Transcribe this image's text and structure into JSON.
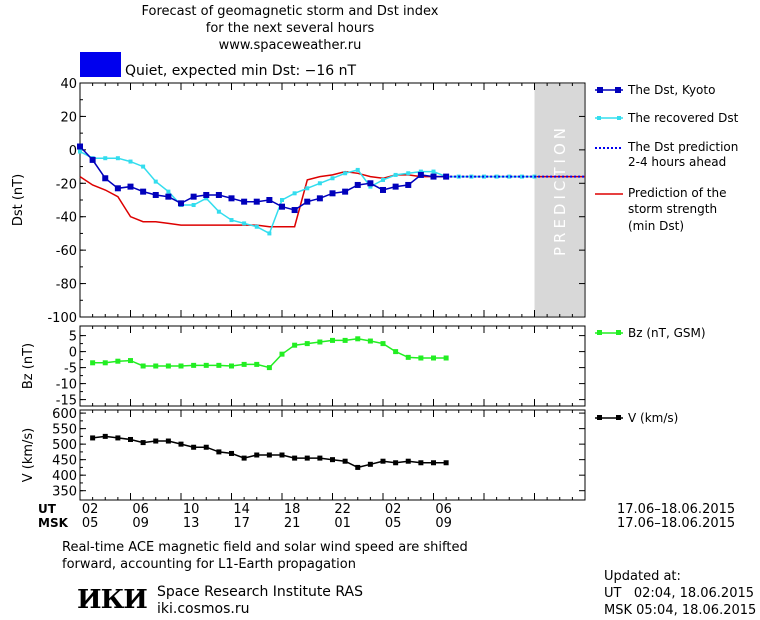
{
  "header": {
    "title_line1": "Forecast of geomagnetic storm and Dst index",
    "title_line2": "for the next several hours",
    "title_line3": "www.spaceweather.ru",
    "status_text": "Quiet, expected min Dst: −16 nT"
  },
  "colors": {
    "status_box": "#0000ee",
    "dst_kyoto": "#0000bb",
    "dst_recovered": "#33ddee",
    "dst_prediction": "#0000ee",
    "storm_strength": "#dd0000",
    "bz": "#22ee22",
    "v": "#000000",
    "prediction_zone": "#d8d8d8"
  },
  "legend": {
    "dst_kyoto": "The Dst, Kyoto",
    "dst_recovered": "The recovered Dst",
    "dst_prediction_line1": "The Dst prediction",
    "dst_prediction_line2": "2-4 hours ahead",
    "storm_line1": "Prediction of the",
    "storm_line2": "storm strength",
    "storm_line3": "(min Dst)",
    "bz": "Bz (nT, GSM)",
    "v": "V (km/s)"
  },
  "prediction_label": "PREDICTION",
  "time_axis": {
    "ut_label": "UT",
    "msk_label": "MSK",
    "ut_ticks": [
      "02",
      "06",
      "10",
      "14",
      "18",
      "22",
      "02",
      "06"
    ],
    "msk_ticks": [
      "05",
      "09",
      "13",
      "17",
      "21",
      "01",
      "05",
      "09"
    ],
    "ut_range": "17.06–18.06.2015",
    "msk_range": "17.06–18.06.2015"
  },
  "footer": {
    "note_line1": "Real-time ACE magnetic field and solar wind speed are shifted",
    "note_line2": "forward, accounting for L1-Earth propagation",
    "logo_text": "ИКИ",
    "institute": "Space Research Institute RAS",
    "website": "iki.cosmos.ru",
    "updated_label": "Updated at:",
    "updated_ut": "UT   02:04, 18.06.2015",
    "updated_msk": "MSK 05:04, 18.06.2015"
  },
  "chart_data": [
    {
      "type": "line",
      "panel": "dst",
      "ylabel": "Dst (nT)",
      "ylim": [
        -100,
        40
      ],
      "yticks": [
        40,
        20,
        0,
        -20,
        -40,
        -60,
        -80,
        -100
      ],
      "xlim": [
        0,
        40
      ],
      "prediction_zone": [
        36,
        40
      ],
      "series": [
        {
          "name": "The Dst, Kyoto",
          "x": [
            0,
            1,
            2,
            3,
            4,
            5,
            6,
            7,
            8,
            9,
            10,
            11,
            12,
            13,
            14,
            15,
            16,
            17,
            18,
            19,
            20,
            21,
            22,
            23,
            24,
            25,
            26,
            27,
            28,
            29
          ],
          "y": [
            2,
            -6,
            -17,
            -23,
            -22,
            -25,
            -27,
            -28,
            -32,
            -28,
            -27,
            -27,
            -29,
            -31,
            -31,
            -30,
            -34,
            -36,
            -31,
            -29,
            -26,
            -25,
            -21,
            -20,
            -24,
            -22,
            -21,
            -15,
            -16,
            -16
          ]
        },
        {
          "name": "The recovered Dst",
          "x": [
            0,
            1,
            2,
            3,
            4,
            5,
            6,
            7,
            8,
            9,
            10,
            11,
            12,
            13,
            14,
            15,
            16,
            17,
            18,
            19,
            20,
            21,
            22,
            23,
            24,
            25,
            26,
            27,
            28,
            29,
            30,
            31,
            32,
            33,
            34,
            35,
            36
          ],
          "y": [
            -1,
            -5,
            -5,
            -5,
            -7,
            -10,
            -19,
            -25,
            -33,
            -33,
            -29,
            -37,
            -42,
            -44,
            -46,
            -50,
            -30,
            -26,
            -23,
            -20,
            -17,
            -14,
            -12,
            -22,
            -18,
            -15,
            -14,
            -13,
            -13,
            -16,
            -16,
            -16,
            -16,
            -16,
            -16,
            -16,
            -16
          ]
        },
        {
          "name": "The Dst prediction 2-4 hours ahead",
          "x": [
            29,
            30,
            31,
            32,
            33,
            34,
            35,
            36,
            37,
            38,
            39,
            40
          ],
          "y": [
            -16,
            -16,
            -16,
            -16,
            -16,
            -16,
            -16,
            -16,
            -16,
            -16,
            -16,
            -16
          ]
        },
        {
          "name": "Prediction of the storm strength (min Dst)",
          "x": [
            0,
            1,
            2,
            3,
            4,
            5,
            6,
            7,
            8,
            9,
            10,
            11,
            12,
            13,
            14,
            15,
            16,
            17,
            18,
            19,
            20,
            21,
            22,
            23,
            24,
            25,
            26,
            27,
            28,
            29,
            30,
            31,
            32,
            33,
            34,
            35,
            36,
            37,
            38,
            39,
            40
          ],
          "y": [
            -16,
            -21,
            -24,
            -28,
            -40,
            -43,
            -43,
            -44,
            -45,
            -45,
            -45,
            -45,
            -45,
            -45,
            -45,
            -46,
            -46,
            -46,
            -18,
            -16,
            -15,
            -13,
            -14,
            -16,
            -17,
            -15,
            -15,
            -16,
            -16,
            -16,
            -16,
            -16,
            -16,
            -16,
            -16,
            -16,
            -16,
            -16,
            -16,
            -16,
            -16
          ]
        }
      ]
    },
    {
      "type": "line",
      "panel": "bz",
      "ylabel": "Bz (nT)",
      "ylim": [
        -17,
        8
      ],
      "yticks": [
        5,
        0,
        -5,
        -10,
        -15
      ],
      "xlim": [
        0,
        40
      ],
      "series": [
        {
          "name": "Bz (nT, GSM)",
          "x": [
            1,
            2,
            3,
            4,
            5,
            6,
            7,
            8,
            9,
            10,
            11,
            12,
            13,
            14,
            15,
            16,
            17,
            18,
            19,
            20,
            21,
            22,
            23,
            24,
            25,
            26,
            27,
            28,
            29
          ],
          "y": [
            -3.5,
            -3.5,
            -3,
            -2.8,
            -4.5,
            -4.5,
            -4.5,
            -4.5,
            -4.3,
            -4.3,
            -4.3,
            -4.5,
            -4,
            -4,
            -5,
            -0.8,
            2,
            2.5,
            3,
            3.5,
            3.5,
            4,
            3.3,
            2.5,
            0,
            -1.8,
            -2,
            -2,
            -2
          ]
        }
      ]
    },
    {
      "type": "line",
      "panel": "v",
      "ylabel": "V (km/s)",
      "ylim": [
        320,
        610
      ],
      "yticks": [
        600,
        550,
        500,
        450,
        400,
        350
      ],
      "xlim": [
        0,
        40
      ],
      "series": [
        {
          "name": "V (km/s)",
          "x": [
            1,
            2,
            3,
            4,
            5,
            6,
            7,
            8,
            9,
            10,
            11,
            12,
            13,
            14,
            15,
            16,
            17,
            18,
            19,
            20,
            21,
            22,
            23,
            24,
            25,
            26,
            27,
            28,
            29
          ],
          "y": [
            520,
            525,
            520,
            515,
            505,
            510,
            510,
            500,
            490,
            490,
            475,
            470,
            455,
            465,
            465,
            465,
            455,
            455,
            455,
            450,
            445,
            425,
            435,
            445,
            440,
            445,
            440,
            440,
            440
          ]
        }
      ]
    }
  ]
}
